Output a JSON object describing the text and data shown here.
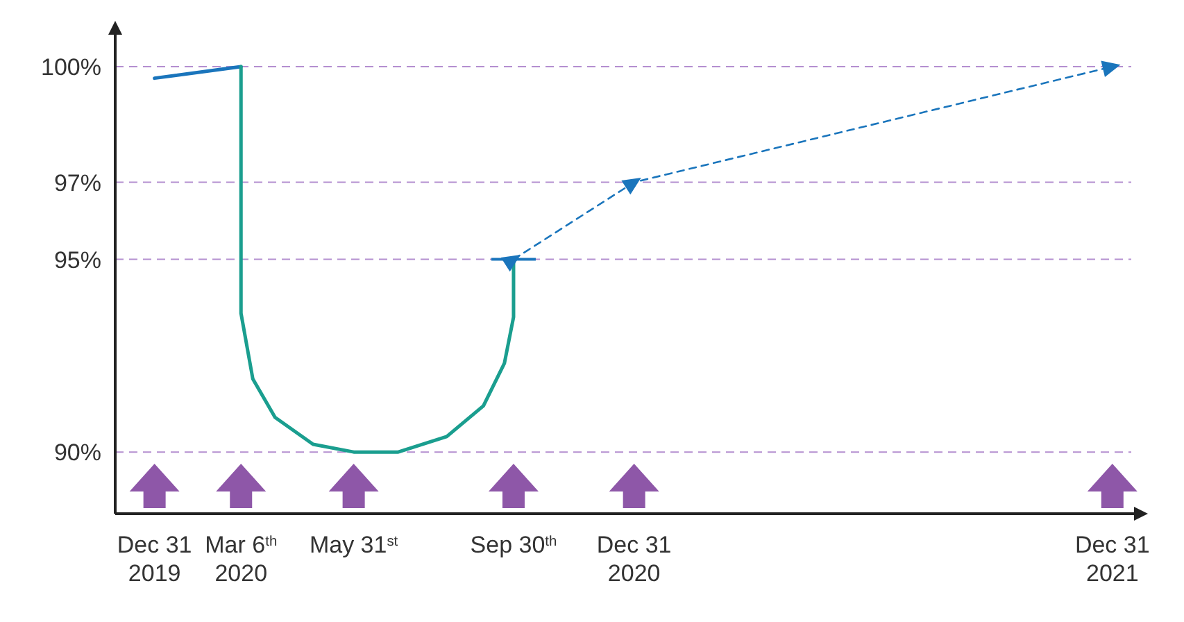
{
  "chart_data": {
    "type": "line",
    "x": [
      "2019-12-31",
      "2020-03-06"
    ],
    "xlim": [
      "2019-12-01",
      "2022-01-25"
    ],
    "xticks": [
      {
        "value": "2019-12-31",
        "label": "Dec 31\n2019"
      },
      {
        "value": "2020-03-06",
        "label": "Mar 6$^{th}$\n2020"
      },
      {
        "value": "2020-05-31",
        "label": "May 31$^{st}$"
      },
      {
        "value": "2020-09-30",
        "label": "Sep 30$^{th}$"
      },
      {
        "value": "2020-12-31",
        "label": "Dec 31\n2020"
      },
      {
        "value": "2021-12-31",
        "label": "Dec 31\n2021"
      }
    ],
    "ylim": [
      88.4,
      100.9
    ],
    "yticks": [
      {
        "value": 90,
        "label": "90%"
      },
      {
        "value": 95,
        "label": "95%"
      },
      {
        "value": 97,
        "label": "97%"
      },
      {
        "value": 100,
        "label": "100%"
      }
    ],
    "grid": "y",
    "series": [
      {
        "color": "#1a75bc",
        "values": [
          99.7,
          100
        ],
        "line_style": "solid",
        "marker": "none"
      },
      {
        "color": "#1a9e8f",
        "x": [
          "2020-03-06",
          "2020-03-06",
          "2020-03-15",
          "2020-04-01",
          "2020-04-30",
          "2020-05-31",
          "2020-07-04",
          "2020-08-10",
          "2020-09-07",
          "2020-09-23",
          "2020-09-30",
          "2020-09-30"
        ],
        "values": [
          100,
          93.6,
          91.9,
          90.9,
          90.2,
          90,
          90,
          90.4,
          91.2,
          92.3,
          93.5,
          95
        ],
        "line_style": "solid",
        "marker": "none"
      },
      {
        "color": "#1a75bc",
        "x": [
          "2020-09-30",
          "2020-12-31",
          "2021-12-31"
        ],
        "values": [
          95,
          97,
          100
        ],
        "line_style": "dashed",
        "marker": "triangle"
      }
    ]
  }
}
